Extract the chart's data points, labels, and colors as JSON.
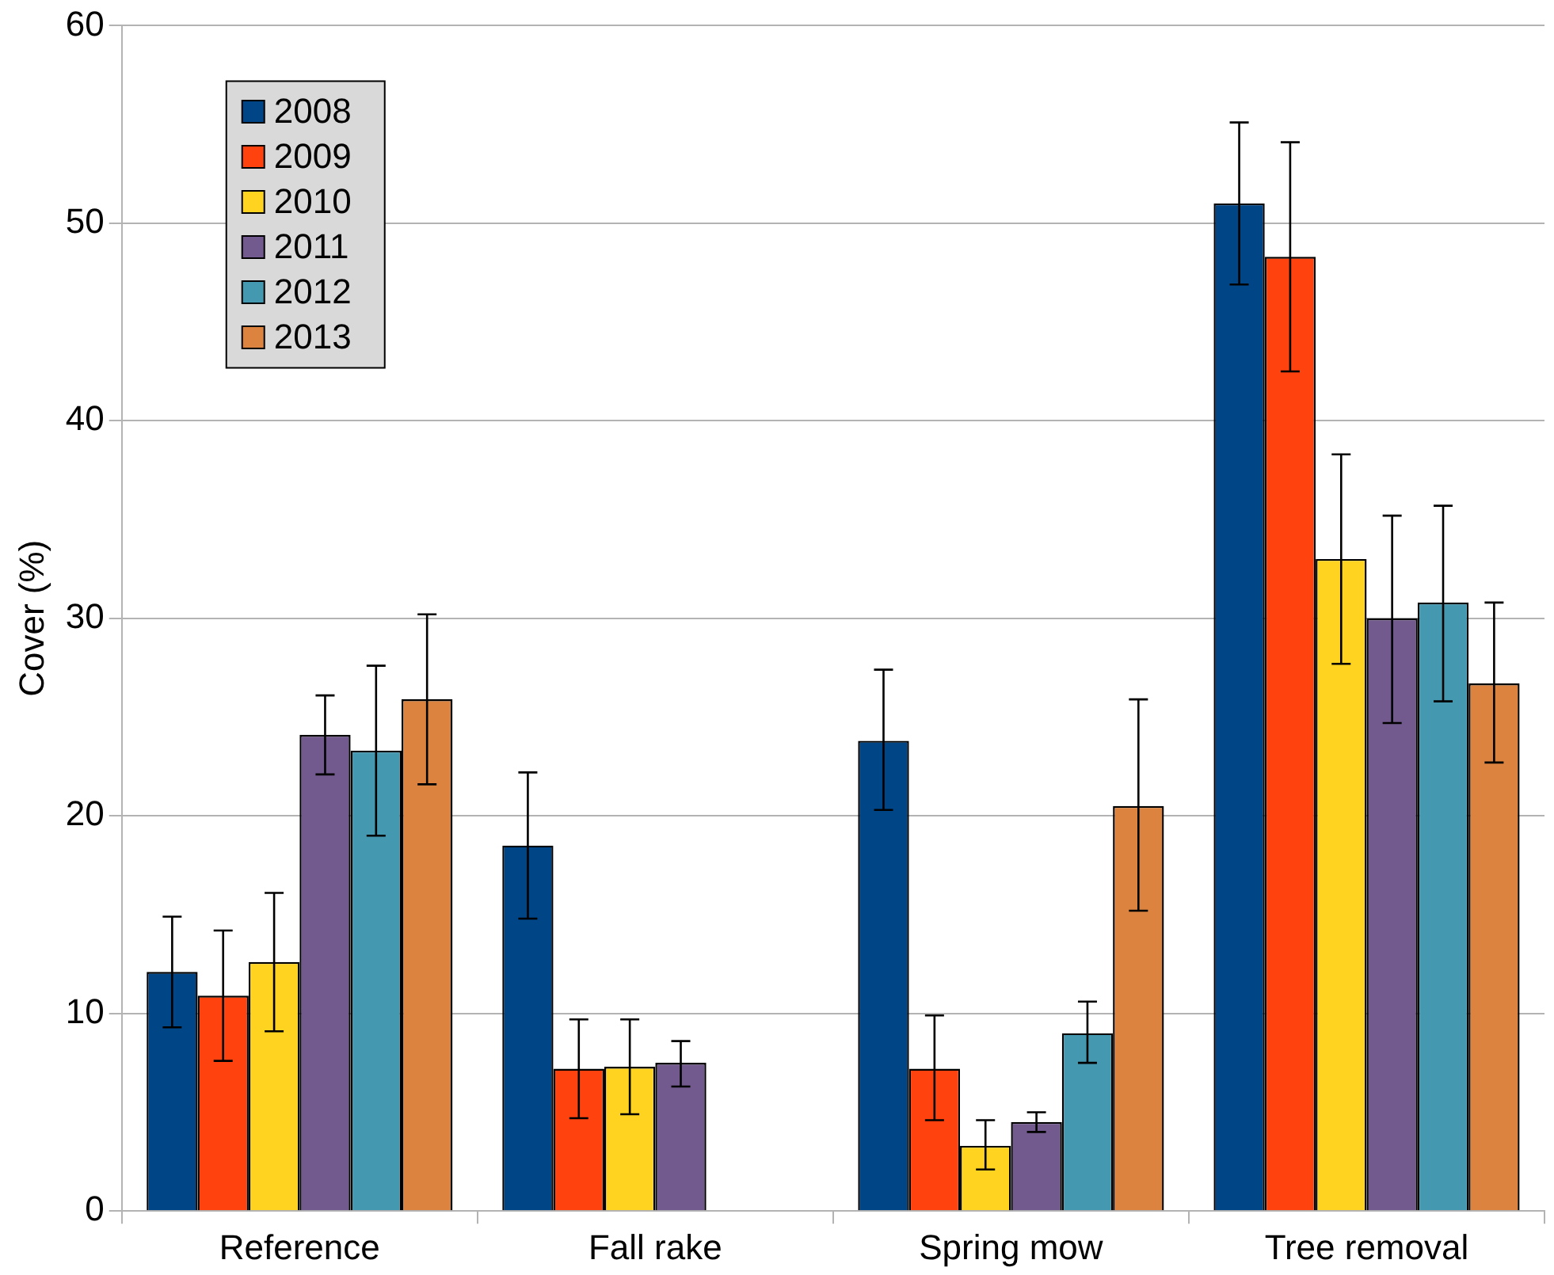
{
  "chart_data": {
    "type": "bar",
    "ylabel": "Cover (%)",
    "categories": [
      "Reference",
      "Fall rake",
      "Spring mow",
      "Tree removal"
    ],
    "series": [
      {
        "name": "2008",
        "color": "#004586",
        "values": [
          12.1,
          18.5,
          23.8,
          51.0
        ],
        "errors": [
          [
            9.3,
            14.9
          ],
          [
            14.8,
            22.2
          ],
          [
            20.3,
            27.4
          ],
          [
            46.9,
            55.1
          ]
        ]
      },
      {
        "name": "2009",
        "color": "#ff420e",
        "values": [
          10.9,
          7.2,
          7.2,
          48.3
        ],
        "errors": [
          [
            7.6,
            14.2
          ],
          [
            4.7,
            9.7
          ],
          [
            4.6,
            9.9
          ],
          [
            42.5,
            54.1
          ]
        ]
      },
      {
        "name": "2010",
        "color": "#ffd320",
        "values": [
          12.6,
          7.3,
          3.3,
          33.0
        ],
        "errors": [
          [
            9.1,
            16.1
          ],
          [
            4.9,
            9.7
          ],
          [
            2.1,
            4.6
          ],
          [
            27.7,
            38.3
          ]
        ]
      },
      {
        "name": "2011",
        "color": "#725a8e",
        "values": [
          24.1,
          7.5,
          4.5,
          30.0
        ],
        "errors": [
          [
            22.1,
            26.1
          ],
          [
            6.3,
            8.6
          ],
          [
            4.0,
            5.0
          ],
          [
            24.7,
            35.2
          ]
        ]
      },
      {
        "name": "2012",
        "color": "#4499b0",
        "values": [
          23.3,
          0,
          9.0,
          30.8
        ],
        "errors": [
          [
            19.0,
            27.6
          ],
          null,
          [
            7.5,
            10.6
          ],
          [
            25.8,
            35.7
          ]
        ]
      },
      {
        "name": "2013",
        "color": "#dc843f",
        "values": [
          25.9,
          0,
          20.5,
          26.7
        ],
        "errors": [
          [
            21.6,
            30.2
          ],
          null,
          [
            15.2,
            25.9
          ],
          [
            22.7,
            30.8
          ]
        ]
      }
    ],
    "ylim": [
      0,
      60
    ],
    "yticks": [
      0,
      10,
      20,
      30,
      40,
      50,
      60
    ],
    "grid": "y",
    "legend": "top left"
  }
}
